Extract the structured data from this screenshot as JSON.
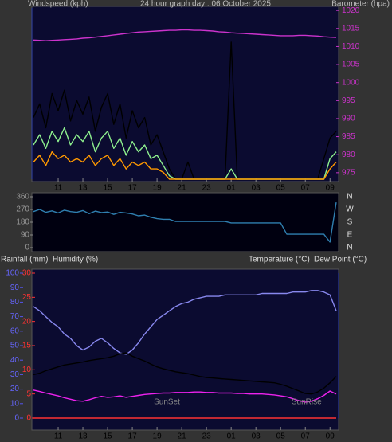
{
  "chart_data": [
    {
      "type": "line",
      "title": "24 hour graph day : 06 October 2025",
      "ylabel": "Windspeed (kph)",
      "y2label": "Barometer (hpa)",
      "x": [
        0,
        0.5,
        1,
        1.5,
        2,
        2.5,
        3,
        3.5,
        4,
        4.5,
        5,
        5.5,
        6,
        6.5,
        7,
        7.5,
        8,
        8.5,
        9,
        9.5,
        10,
        10.5,
        11,
        11.5,
        12,
        12.5,
        13,
        13.5,
        14,
        14.5,
        15,
        15.5,
        16,
        16.5,
        17,
        17.5,
        18,
        18.5,
        19,
        19.5,
        20,
        20.5,
        21,
        21.5,
        22,
        22.5,
        23,
        23.5,
        24,
        24.5
      ],
      "xlim": [
        0,
        24.5
      ],
      "xticks": [
        {
          "value": 2,
          "label": "11"
        },
        {
          "value": 4,
          "label": "13"
        },
        {
          "value": 6,
          "label": "15"
        },
        {
          "value": 8,
          "label": "17"
        },
        {
          "value": 10,
          "label": "19"
        },
        {
          "value": 12,
          "label": "21"
        },
        {
          "value": 14,
          "label": "23"
        },
        {
          "value": 16,
          "label": "01"
        },
        {
          "value": 18,
          "label": "03"
        },
        {
          "value": 20,
          "label": "05"
        },
        {
          "value": 22,
          "label": "07"
        },
        {
          "value": 24,
          "label": "09"
        }
      ],
      "ylim": [
        0,
        50
      ],
      "y2lim": [
        973.2,
        1020.7
      ],
      "y2ticks": [
        975,
        980,
        985,
        990,
        995,
        1000,
        1005,
        1010,
        1015,
        1020
      ],
      "series": [
        {
          "color": "#000000",
          "values": [
            18,
            22,
            15,
            25,
            20,
            26,
            17,
            23,
            19,
            24,
            14,
            21,
            25,
            16,
            22,
            12,
            20,
            15,
            18,
            10,
            13,
            8,
            3,
            0,
            0,
            5,
            0,
            0,
            0,
            0,
            0,
            0,
            40,
            0,
            0,
            0,
            0,
            0,
            0,
            0,
            0,
            0,
            0,
            0,
            0,
            0,
            0,
            6,
            12,
            14
          ]
        },
        {
          "color": "#8ef08e",
          "values": [
            10,
            13,
            9,
            14,
            11,
            15,
            10,
            13,
            11,
            14,
            8,
            12,
            14,
            9,
            12,
            7,
            11,
            8,
            10,
            6,
            7,
            4,
            1,
            0,
            0,
            0,
            0,
            0,
            0,
            0,
            0,
            0,
            3,
            0,
            0,
            0,
            0,
            0,
            0,
            0,
            0,
            0,
            0,
            0,
            0,
            0,
            0,
            0,
            6,
            8
          ]
        },
        {
          "color": "#ff9900",
          "values": [
            5,
            7,
            4,
            8,
            6,
            7,
            5,
            6,
            5,
            7,
            4,
            6,
            7,
            4,
            6,
            3,
            5,
            4,
            5,
            3,
            3,
            2,
            0,
            0,
            0,
            0,
            0,
            0,
            0,
            0,
            0,
            0,
            0,
            0,
            0,
            0,
            0,
            0,
            0,
            0,
            0,
            0,
            0,
            0,
            0,
            0,
            0,
            0,
            3,
            5
          ]
        },
        {
          "color": "#cc33cc",
          "axis": "y2",
          "values": [
            1011.8,
            1011.7,
            1011.6,
            1011.7,
            1011.8,
            1011.9,
            1012.0,
            1012.1,
            1012.3,
            1012.4,
            1012.6,
            1012.8,
            1013.0,
            1013.2,
            1013.4,
            1013.6,
            1013.8,
            1014.0,
            1014.1,
            1014.2,
            1014.3,
            1014.4,
            1014.5,
            1014.5,
            1014.6,
            1014.6,
            1014.5,
            1014.5,
            1014.4,
            1014.3,
            1014.1,
            1014.0,
            1013.8,
            1013.7,
            1013.6,
            1013.5,
            1013.4,
            1013.3,
            1013.2,
            1013.1,
            1013.0,
            1013.0,
            1013.0,
            1013.1,
            1013.1,
            1013.0,
            1012.9,
            1012.7,
            1012.6,
            1012.5
          ]
        }
      ]
    },
    {
      "type": "line",
      "x": [
        0,
        0.5,
        1,
        1.5,
        2,
        2.5,
        3,
        3.5,
        4,
        4.5,
        5,
        5.5,
        6,
        6.5,
        7,
        7.5,
        8,
        8.5,
        9,
        9.5,
        10,
        10.5,
        11,
        11.5,
        12,
        12.5,
        13,
        13.5,
        14,
        14.5,
        15,
        15.5,
        16,
        16.5,
        17,
        17.5,
        18,
        18.5,
        19,
        19.5,
        20,
        20.5,
        21,
        21.5,
        22,
        22.5,
        23,
        23.5,
        24,
        24.5
      ],
      "xlim": [
        0,
        24.5
      ],
      "ylim": [
        0,
        360
      ],
      "yticks": [
        0,
        90,
        180,
        270,
        360
      ],
      "y2lim": [
        0,
        360
      ],
      "y2ticks": [
        {
          "value": 360,
          "label": "N"
        },
        {
          "value": 270,
          "label": "W"
        },
        {
          "value": 180,
          "label": "S"
        },
        {
          "value": 90,
          "label": "E"
        },
        {
          "value": 0,
          "label": "N"
        }
      ],
      "series": [
        {
          "color": "#2f7fb0",
          "values": [
            255,
            270,
            250,
            260,
            245,
            265,
            255,
            250,
            262,
            240,
            258,
            248,
            252,
            235,
            250,
            245,
            238,
            225,
            230,
            215,
            205,
            200,
            200,
            185,
            185,
            185,
            185,
            185,
            185,
            185,
            185,
            185,
            175,
            175,
            175,
            175,
            175,
            175,
            175,
            175,
            175,
            95,
            95,
            95,
            95,
            95,
            95,
            95,
            40,
            320
          ]
        }
      ]
    },
    {
      "type": "line",
      "rain_label": "Rainfall (mm)",
      "humidity_label": "Humidity (%)",
      "temperature_label": "Temperature (°C)",
      "dewpoint_label": "Dew Point (°C)",
      "x": [
        0,
        0.5,
        1,
        1.5,
        2,
        2.5,
        3,
        3.5,
        4,
        4.5,
        5,
        5.5,
        6,
        6.5,
        7,
        7.5,
        8,
        8.5,
        9,
        9.5,
        10,
        10.5,
        11,
        11.5,
        12,
        12.5,
        13,
        13.5,
        14,
        14.5,
        15,
        15.5,
        16,
        16.5,
        17,
        17.5,
        18,
        18.5,
        19,
        19.5,
        20,
        20.5,
        21,
        21.5,
        22,
        22.5,
        23,
        23.5,
        24,
        24.5
      ],
      "xlim": [
        0,
        24.5
      ],
      "xticks": [
        {
          "value": 2,
          "label": "11"
        },
        {
          "value": 4,
          "label": "13"
        },
        {
          "value": 6,
          "label": "15"
        },
        {
          "value": 8,
          "label": "17"
        },
        {
          "value": 10,
          "label": "19"
        },
        {
          "value": 12,
          "label": "21"
        },
        {
          "value": 14,
          "label": "23"
        },
        {
          "value": 16,
          "label": "01"
        },
        {
          "value": 18,
          "label": "03"
        },
        {
          "value": 20,
          "label": "05"
        },
        {
          "value": 22,
          "label": "07"
        },
        {
          "value": 24,
          "label": "09"
        }
      ],
      "ylim": [
        0,
        30
      ],
      "yticks": [
        0,
        5,
        10,
        15,
        20,
        25,
        30
      ],
      "y2lim": [
        0,
        100
      ],
      "y2ticks": [
        0,
        10,
        20,
        30,
        40,
        50,
        60,
        70,
        80,
        90,
        100
      ],
      "annotations": [
        {
          "text": "SunSet",
          "x": 10.8
        },
        {
          "text": "SunRise",
          "x": 22.1
        }
      ],
      "series": [
        {
          "color": "#8888ee",
          "axis": "y2",
          "values": [
            77,
            74,
            70,
            66,
            63,
            58,
            55,
            50,
            47,
            49,
            53,
            55,
            52,
            48,
            45,
            44,
            47,
            52,
            58,
            63,
            68,
            71,
            74,
            77,
            79,
            80,
            82,
            83,
            84,
            84,
            84,
            85,
            85,
            85,
            85,
            85,
            85,
            86,
            86,
            86,
            86,
            86,
            87,
            87,
            87,
            88,
            88,
            87,
            85,
            74
          ]
        },
        {
          "color": "#000000",
          "values": [
            9.0,
            9.3,
            9.8,
            10.2,
            10.6,
            11.0,
            11.2,
            11.4,
            11.6,
            11.9,
            12.1,
            12.3,
            12.5,
            12.8,
            13.3,
            13.5,
            12.8,
            12.3,
            11.8,
            11.2,
            10.6,
            10.2,
            9.9,
            9.6,
            9.4,
            9.2,
            8.9,
            8.6,
            8.4,
            8.3,
            8.2,
            8.1,
            8.0,
            7.9,
            7.8,
            7.7,
            7.6,
            7.5,
            7.4,
            7.3,
            7.0,
            6.6,
            6.1,
            5.6,
            5.1,
            5.0,
            5.4,
            6.2,
            7.3,
            8.6
          ]
        },
        {
          "color": "#ee22ee",
          "values": [
            5.8,
            5.5,
            5.2,
            4.9,
            4.6,
            4.2,
            3.9,
            3.6,
            3.5,
            3.8,
            4.2,
            4.5,
            4.3,
            4.4,
            4.6,
            4.3,
            4.5,
            4.7,
            4.9,
            5.0,
            5.1,
            5.2,
            5.2,
            5.3,
            5.3,
            5.3,
            5.4,
            5.4,
            5.3,
            5.3,
            5.2,
            5.2,
            5.2,
            5.1,
            5.1,
            5.0,
            5.0,
            5.0,
            4.9,
            4.8,
            4.6,
            4.4,
            4.0,
            3.6,
            3.3,
            3.5,
            4.0,
            4.7,
            5.6,
            5.0
          ]
        },
        {
          "color": "#ff3333",
          "values": [
            0,
            0,
            0,
            0,
            0,
            0,
            0,
            0,
            0,
            0,
            0,
            0,
            0,
            0,
            0,
            0,
            0,
            0,
            0,
            0,
            0,
            0,
            0,
            0,
            0,
            0,
            0,
            0,
            0,
            0,
            0,
            0,
            0,
            0,
            0,
            0,
            0,
            0,
            0,
            0,
            0,
            0,
            0,
            0,
            0,
            0,
            0,
            0,
            0,
            0
          ]
        }
      ]
    }
  ]
}
